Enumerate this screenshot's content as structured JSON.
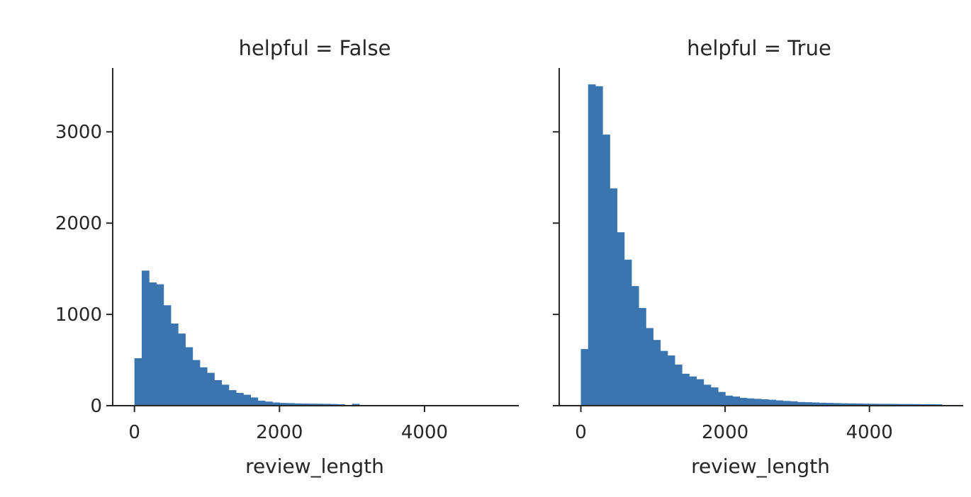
{
  "chart_data": [
    {
      "type": "bar",
      "title": "helpful = False",
      "xlabel": "review_length",
      "ylabel": "",
      "bar_color": "#3a75b0",
      "xlim": [
        -300,
        5300
      ],
      "ylim": [
        0,
        3700
      ],
      "xticks": [
        0,
        2000,
        4000
      ],
      "yticks": [
        0,
        1000,
        2000,
        3000
      ],
      "show_y_tick_labels": true,
      "bin_width": 100,
      "bin_start": 0,
      "values": [
        520,
        1480,
        1350,
        1330,
        1100,
        900,
        790,
        640,
        500,
        420,
        360,
        280,
        230,
        170,
        140,
        120,
        90,
        55,
        45,
        35,
        30,
        28,
        25,
        23,
        22,
        21,
        20,
        18,
        15,
        5,
        20,
        5,
        4,
        3,
        3,
        3,
        2,
        2,
        2,
        2,
        2,
        2,
        1,
        1,
        1,
        1,
        1,
        1,
        1,
        1
      ]
    },
    {
      "type": "bar",
      "title": "helpful = True",
      "xlabel": "review_length",
      "ylabel": "",
      "bar_color": "#3a75b0",
      "xlim": [
        -300,
        5300
      ],
      "ylim": [
        0,
        3700
      ],
      "xticks": [
        0,
        2000,
        4000
      ],
      "yticks": [
        0,
        1000,
        2000,
        3000
      ],
      "show_y_tick_labels": false,
      "bin_width": 100,
      "bin_start": 0,
      "values": [
        620,
        3520,
        3500,
        2970,
        2380,
        1900,
        1600,
        1310,
        1070,
        850,
        720,
        600,
        550,
        450,
        350,
        320,
        290,
        230,
        200,
        150,
        110,
        100,
        85,
        80,
        75,
        70,
        65,
        58,
        52,
        48,
        40,
        38,
        35,
        32,
        30,
        28,
        26,
        25,
        24,
        22,
        21,
        20,
        20,
        19,
        18,
        18,
        17,
        16,
        16,
        15
      ]
    }
  ]
}
